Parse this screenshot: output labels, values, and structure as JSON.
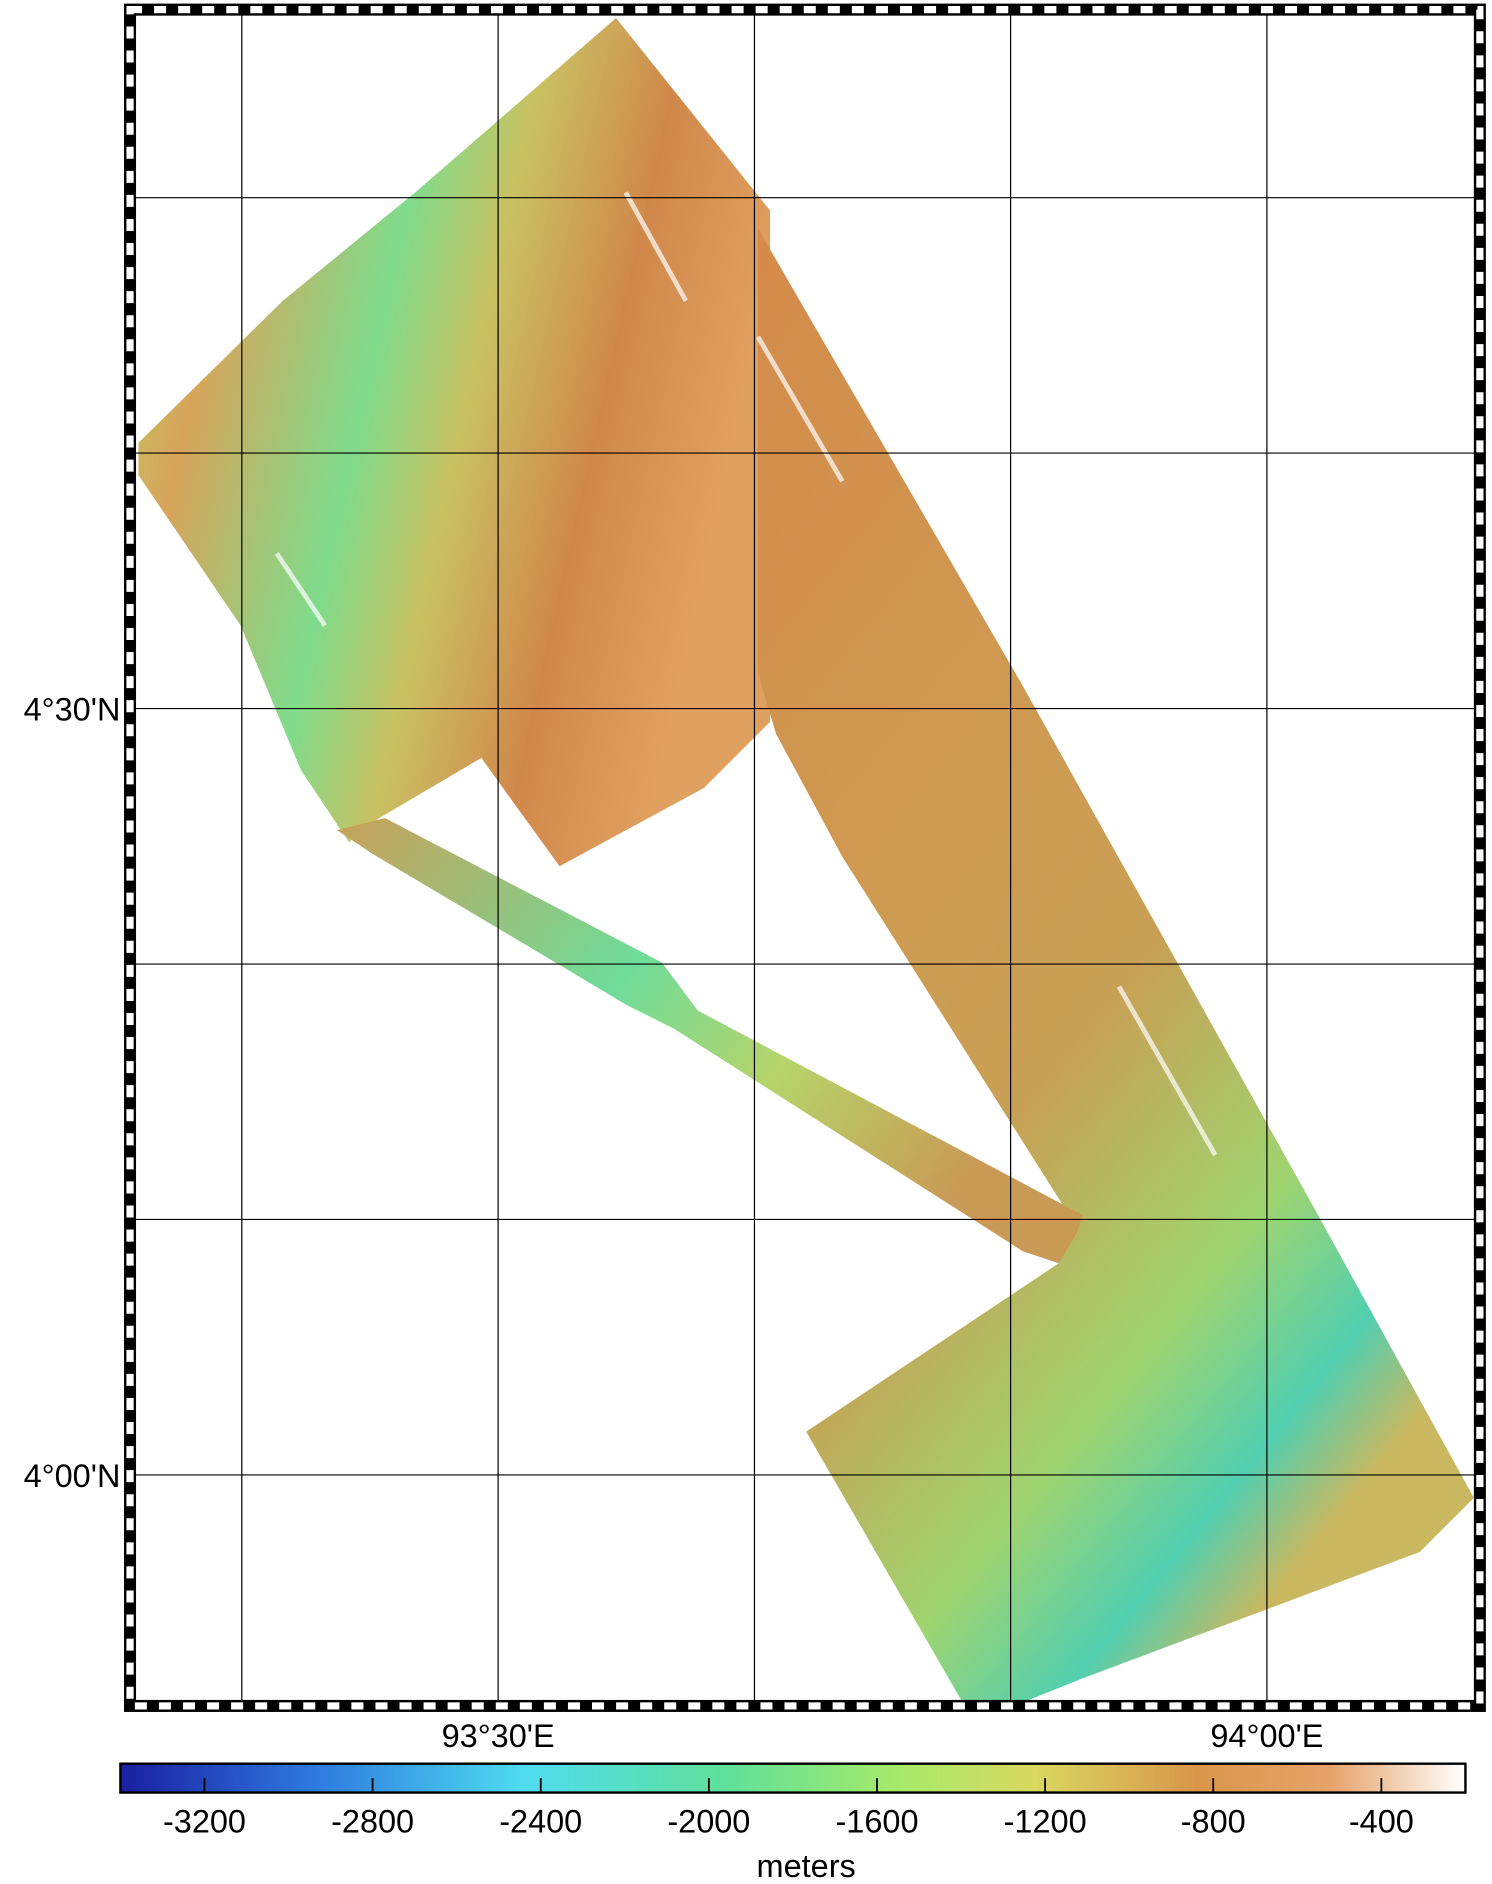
{
  "map": {
    "xlim": [
      93.2606,
      94.1385
    ],
    "ylim": [
      3.8493,
      4.956
    ],
    "xgrid": [
      93.3333,
      93.5,
      93.6667,
      93.8333,
      94.0
    ],
    "ygrid": [
      4.0,
      4.1667,
      4.3333,
      4.5,
      4.6667,
      4.8333
    ],
    "xlabels": [
      {
        "value": 93.5,
        "label": "93°30'E"
      },
      {
        "value": 94.0,
        "label": "94°00'E"
      }
    ],
    "ylabels": [
      {
        "value": 4.5,
        "label": "4°30'N"
      },
      {
        "value": 4.0,
        "label": "4°00'N"
      }
    ]
  },
  "colorbar": {
    "lim": [
      -3400,
      -200
    ],
    "ticks": [
      -3200,
      -2800,
      -2400,
      -2000,
      -1600,
      -1200,
      -800,
      -400
    ],
    "label": "meters"
  }
}
